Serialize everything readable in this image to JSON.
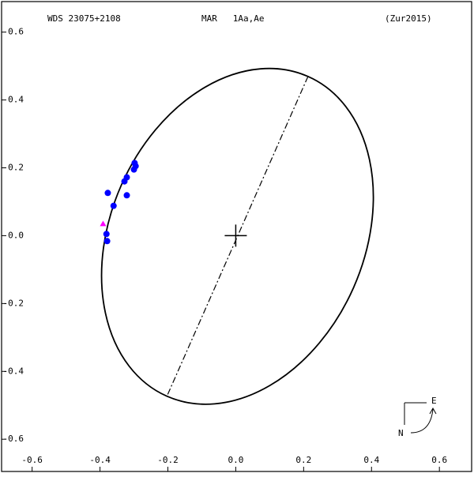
{
  "chart_data": {
    "type": "scatter",
    "title": "WDS 23075+2108",
    "subtitle": "MAR   1Aa,Ae",
    "reference": "(Zur2015)",
    "compass": {
      "east": "E",
      "north": "N"
    },
    "xlim": [
      -0.69,
      0.695
    ],
    "ylim": [
      -0.695,
      0.69
    ],
    "xticks": [
      -0.6,
      -0.4,
      -0.2,
      {
        "value": 0,
        "label": "0.0"
      },
      0.2,
      0.4,
      0.6
    ],
    "yticks": [
      -0.6,
      -0.4,
      -0.2,
      {
        "value": 0,
        "label": "0.0"
      },
      0.2,
      0.4,
      0.6
    ],
    "orbit": {
      "cx": 0.005,
      "cy": -0.002,
      "a": 0.515,
      "b": 0.374,
      "angle": 66.2,
      "color": "#000000"
    },
    "series": [
      {
        "color": "#0000ff",
        "marker": "circle",
        "x": [
          -0.298,
          -0.295,
          -0.3,
          -0.321,
          -0.328,
          -0.321,
          -0.377,
          -0.36,
          -0.381,
          -0.379
        ],
        "values": [
          0.214,
          0.205,
          0.195,
          0.172,
          0.16,
          0.119,
          0.126,
          0.088,
          0.005,
          -0.016
        ]
      },
      {
        "color": "#ff00ff",
        "marker": "triangle",
        "x": [
          -0.391
        ],
        "values": [
          0.035
        ]
      }
    ]
  }
}
